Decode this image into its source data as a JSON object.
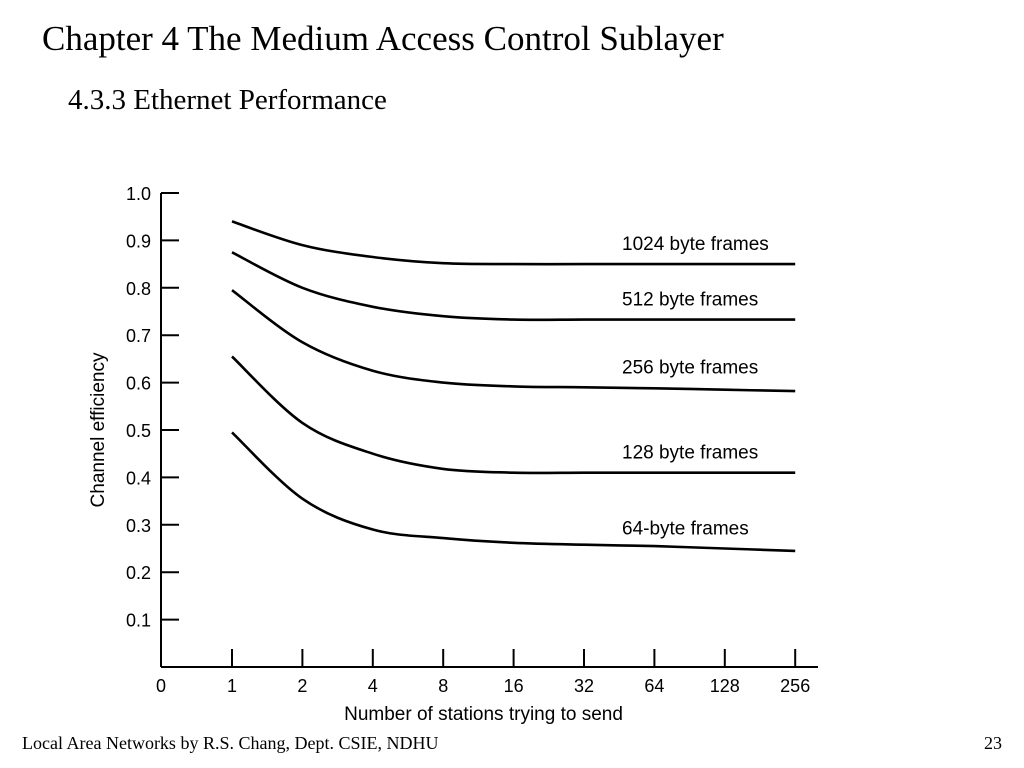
{
  "slide": {
    "title": "Chapter 4 The Medium Access Control Sublayer",
    "subtitle": "4.3.3 Ethernet Performance",
    "footer": "Local Area Networks by R.S. Chang, Dept. CSIE, NDHU",
    "page_number": "23"
  },
  "chart_data": {
    "type": "line",
    "xlabel": "Number of stations trying to send",
    "ylabel": "Channel efficiency",
    "x_ticks": [
      "0",
      "1",
      "2",
      "4",
      "8",
      "16",
      "32",
      "64",
      "128",
      "256"
    ],
    "x_scale": "log2",
    "ylim": [
      0,
      1.0
    ],
    "y_ticks": [
      "0.1",
      "0.2",
      "0.3",
      "0.4",
      "0.5",
      "0.6",
      "0.7",
      "0.8",
      "0.9",
      "1.0"
    ],
    "grid": false,
    "x": [
      1,
      2,
      4,
      8,
      16,
      32,
      64,
      128,
      256
    ],
    "series": [
      {
        "name": "1024 byte frames",
        "values": [
          0.94,
          0.89,
          0.865,
          0.852,
          0.85,
          0.85,
          0.85,
          0.85,
          0.85
        ]
      },
      {
        "name": "512 byte frames",
        "values": [
          0.875,
          0.8,
          0.76,
          0.74,
          0.733,
          0.733,
          0.733,
          0.733,
          0.733
        ]
      },
      {
        "name": "256 byte frames",
        "values": [
          0.795,
          0.685,
          0.625,
          0.6,
          0.592,
          0.59,
          0.588,
          0.585,
          0.582
        ]
      },
      {
        "name": "128 byte frames",
        "values": [
          0.655,
          0.515,
          0.45,
          0.418,
          0.41,
          0.41,
          0.41,
          0.41,
          0.41
        ]
      },
      {
        "name": "64-byte frames",
        "values": [
          0.495,
          0.355,
          0.29,
          0.272,
          0.262,
          0.258,
          0.255,
          0.25,
          0.245
        ]
      }
    ]
  }
}
